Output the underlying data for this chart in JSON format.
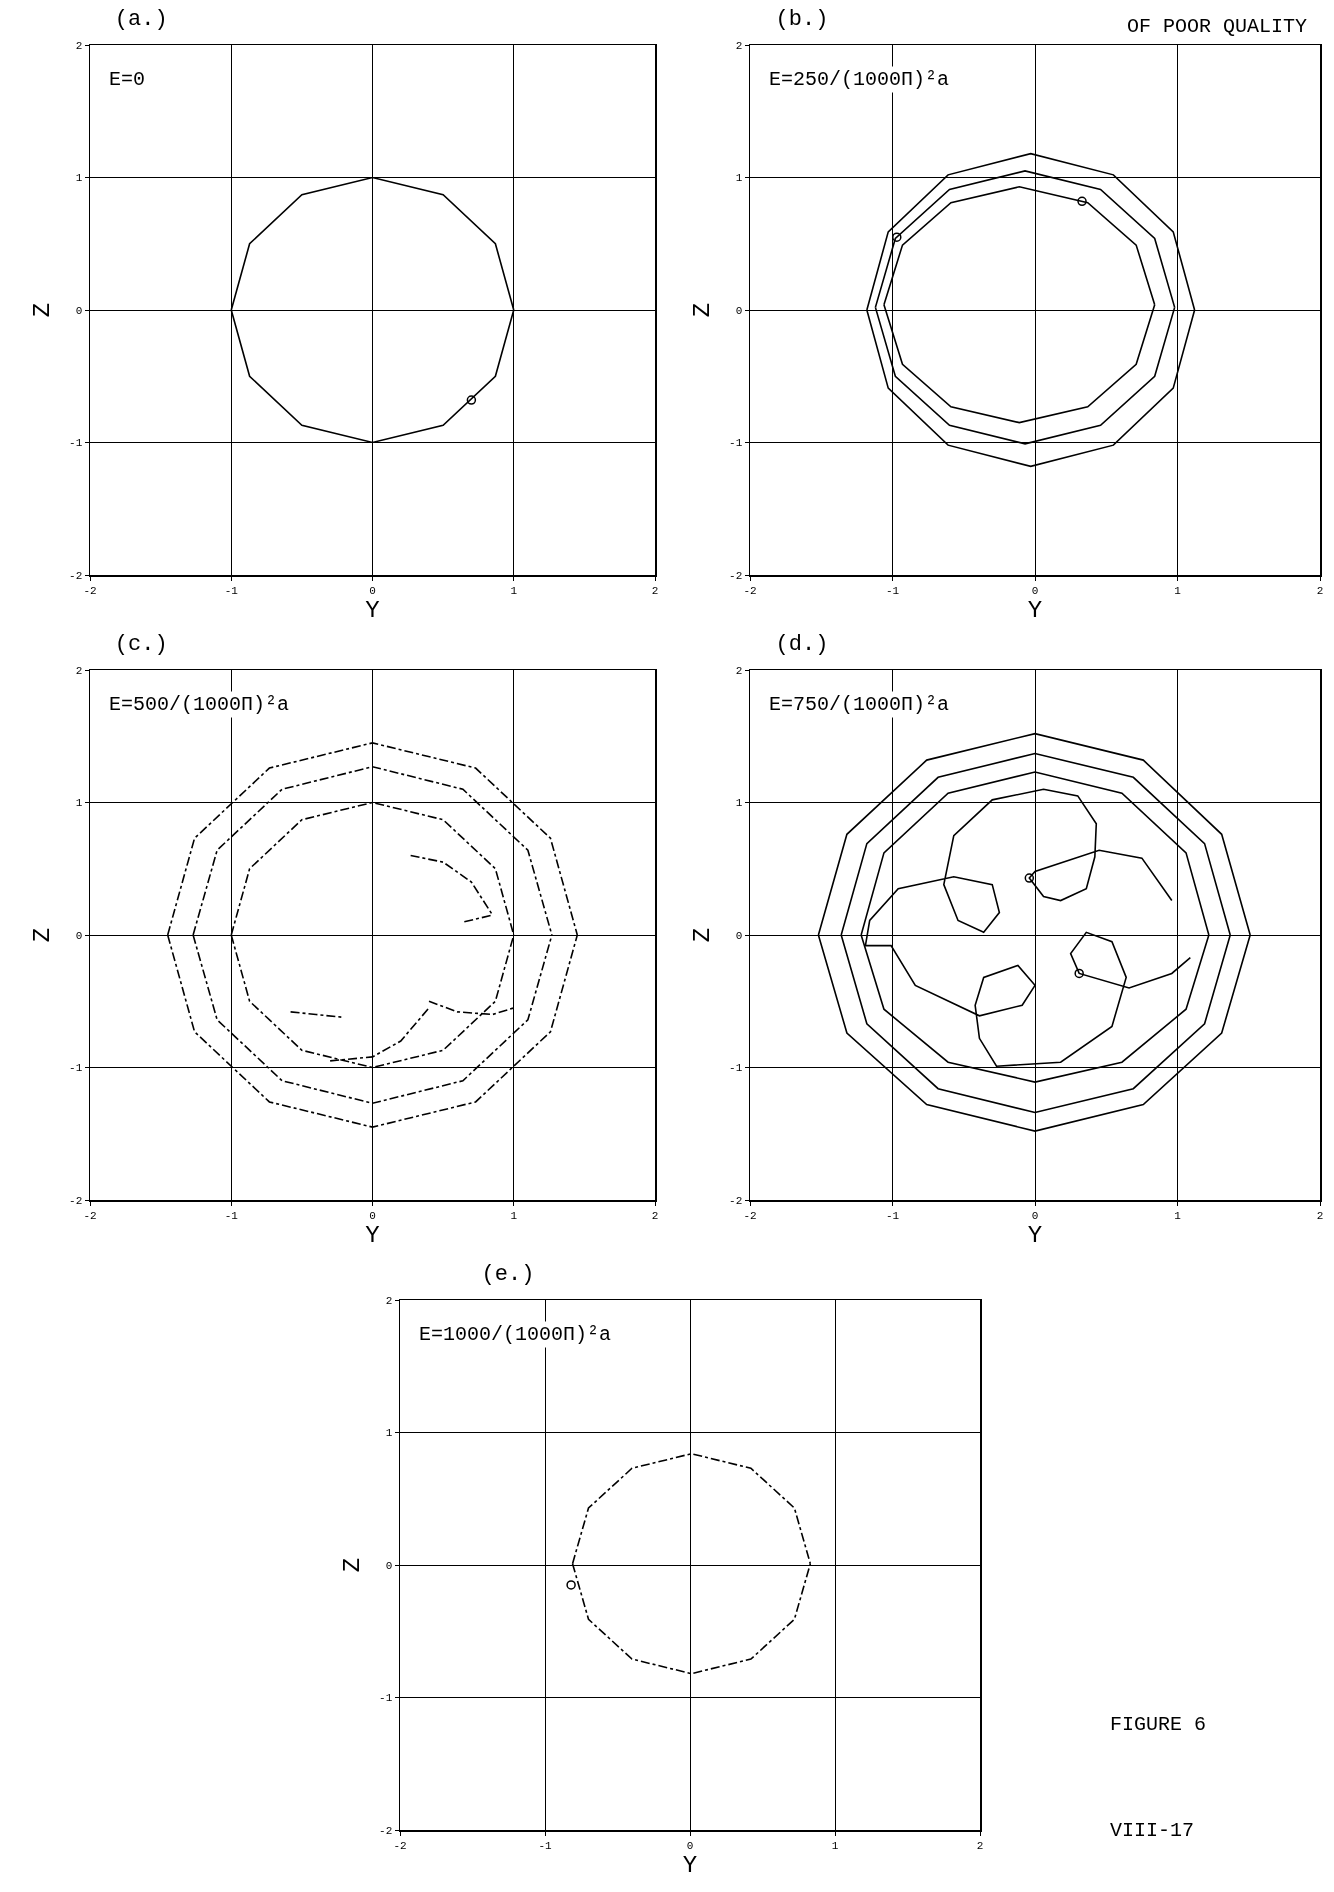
{
  "chart_data": [
    {
      "type": "line",
      "title": "(a.)",
      "xlabel": "Y",
      "ylabel": "Z",
      "annotations": [
        "E=0"
      ],
      "xlim": [
        -2,
        2
      ],
      "ylim": [
        -2,
        2
      ],
      "xticks": [
        -2,
        -1,
        0,
        1,
        2
      ],
      "yticks": [
        -2,
        -1,
        0,
        1,
        2
      ],
      "grid": true,
      "line_style": "solid",
      "series": [
        {
          "color": "#000000",
          "x": [
            -1,
            -0.87,
            -0.5,
            0,
            0.5,
            0.87,
            1
          ],
          "values": [
            0,
            0.5,
            0.87,
            1,
            0.87,
            0.5,
            0
          ]
        },
        {
          "color": "#000000",
          "x": [
            -1,
            -0.87,
            -0.5,
            0,
            0.5,
            0.87,
            1
          ],
          "values": [
            0,
            -0.5,
            -0.87,
            -1,
            -0.87,
            -0.5,
            0
          ]
        },
        {
          "type": "scatter",
          "color": "#000000",
          "x": [
            0.7
          ],
          "values": [
            -0.68
          ]
        }
      ]
    },
    {
      "type": "line",
      "title": "(b.)",
      "xlabel": "Y",
      "ylabel": "Z",
      "annotations": [
        "E=250/(1000Π)²a",
        "OF POOR QUALITY"
      ],
      "xlim": [
        -2,
        2
      ],
      "ylim": [
        -2,
        2
      ],
      "xticks": [
        -2,
        -1,
        0,
        1,
        2
      ],
      "yticks": [
        -2,
        -1,
        0,
        1,
        2
      ],
      "grid": true,
      "line_style": "solid",
      "series": [
        {
          "color": "#000000",
          "x": [
            -1.18,
            -1.03,
            -0.61,
            -0.03,
            0.55,
            0.97,
            1.12
          ],
          "values": [
            0,
            0.59,
            1.02,
            1.18,
            1.02,
            0.59,
            0
          ]
        },
        {
          "color": "#000000",
          "x": [
            -1.18,
            -1.03,
            -0.61,
            -0.03,
            0.55,
            0.97,
            1.12
          ],
          "values": [
            0,
            -0.59,
            -1.02,
            -1.18,
            -1.02,
            -0.59,
            0
          ]
        },
        {
          "color": "#000000",
          "x": [
            -1.12,
            -0.98,
            -0.6,
            -0.07,
            0.46,
            0.84,
            0.98
          ],
          "values": [
            0.02,
            0.54,
            0.91,
            1.05,
            0.91,
            0.54,
            0.02
          ]
        },
        {
          "color": "#000000",
          "x": [
            -1.12,
            -0.98,
            -0.6,
            -0.07,
            0.46,
            0.84,
            0.98
          ],
          "values": [
            0.02,
            -0.5,
            -0.87,
            -1.01,
            -0.87,
            -0.5,
            0.02
          ]
        },
        {
          "color": "#000000",
          "x": [
            -1.06,
            -0.93,
            -0.59,
            -0.11,
            0.37,
            0.71,
            0.84
          ],
          "values": [
            0.04,
            0.49,
            0.81,
            0.93,
            0.81,
            0.49,
            0.04
          ]
        },
        {
          "color": "#000000",
          "x": [
            -1.06,
            -0.93,
            -0.59,
            -0.11,
            0.37,
            0.71,
            0.84
          ],
          "values": [
            0.04,
            -0.41,
            -0.73,
            -0.85,
            -0.73,
            -0.41,
            0.04
          ]
        },
        {
          "type": "scatter",
          "color": "#000000",
          "x": [
            -0.97,
            0.33
          ],
          "values": [
            0.55,
            0.82
          ]
        }
      ]
    },
    {
      "type": "line",
      "title": "(c.)",
      "xlabel": "Y",
      "ylabel": "Z",
      "annotations": [
        "E=500/(1000Π)²a"
      ],
      "xlim": [
        -2,
        2
      ],
      "ylim": [
        -2,
        2
      ],
      "xticks": [
        -2,
        -1,
        0,
        1,
        2
      ],
      "yticks": [
        -2,
        -1,
        0,
        1,
        2
      ],
      "grid": true,
      "line_style": "dashed",
      "series": [
        {
          "color": "#000000",
          "x": [
            -1.45,
            -1.26,
            -0.73,
            0,
            0.73,
            1.26,
            1.45
          ],
          "values": [
            0,
            0.73,
            1.26,
            1.45,
            1.26,
            0.73,
            0
          ]
        },
        {
          "color": "#000000",
          "x": [
            -1.45,
            -1.26,
            -0.73,
            0,
            0.73,
            1.26,
            1.45
          ],
          "values": [
            0,
            -0.73,
            -1.26,
            -1.45,
            -1.26,
            -0.73,
            0
          ]
        },
        {
          "color": "#000000",
          "x": [
            -1.27,
            -1.1,
            -0.64,
            0,
            0.64,
            1.1,
            1.27
          ],
          "values": [
            0,
            0.64,
            1.1,
            1.27,
            1.1,
            0.64,
            0
          ]
        },
        {
          "color": "#000000",
          "x": [
            -1.27,
            -1.1,
            -0.64,
            0,
            0.64,
            1.1,
            1.27
          ],
          "values": [
            0,
            -0.64,
            -1.1,
            -1.27,
            -1.1,
            -0.64,
            0
          ]
        },
        {
          "color": "#000000",
          "x": [
            -1,
            -0.87,
            -0.5,
            0,
            0.5,
            0.87,
            1
          ],
          "values": [
            0,
            0.5,
            0.87,
            1,
            0.87,
            0.5,
            0
          ]
        },
        {
          "color": "#000000",
          "x": [
            -1,
            -0.87,
            -0.5,
            0,
            0.5,
            0.87,
            1
          ],
          "values": [
            0,
            -0.5,
            -0.87,
            -1,
            -0.87,
            -0.5,
            0
          ]
        },
        {
          "color": "#000000",
          "x": [
            0.27,
            0.5,
            0.7,
            0.85
          ],
          "values": [
            0.6,
            0.55,
            0.4,
            0.15
          ]
        },
        {
          "color": "#000000",
          "x": [
            0.65,
            0.85
          ],
          "values": [
            0.1,
            0.15
          ]
        },
        {
          "color": "#000000",
          "x": [
            0.4,
            0.6,
            0.85,
            1.0
          ],
          "values": [
            -0.5,
            -0.58,
            -0.6,
            -0.55
          ]
        },
        {
          "color": "#000000",
          "x": [
            -0.3,
            0,
            0.2,
            0.4
          ],
          "values": [
            -0.95,
            -0.92,
            -0.8,
            -0.55
          ]
        },
        {
          "color": "#000000",
          "x": [
            -0.58,
            -0.4,
            -0.22
          ],
          "values": [
            -0.58,
            -0.6,
            -0.62
          ]
        }
      ]
    },
    {
      "type": "line",
      "title": "(d.)",
      "xlabel": "Y",
      "ylabel": "Z",
      "annotations": [
        "E=750/(1000Π)²a"
      ],
      "xlim": [
        -2,
        2
      ],
      "ylim": [
        -2,
        2
      ],
      "xticks": [
        -2,
        -1,
        0,
        1,
        2
      ],
      "yticks": [
        -2,
        -1,
        0,
        1,
        2
      ],
      "grid": true,
      "line_style": "solid",
      "series": [
        {
          "color": "#000000",
          "x": [
            -1.52,
            -1.32,
            -0.76,
            0,
            0.76,
            1.31,
            1.51
          ],
          "values": [
            0,
            0.76,
            1.32,
            1.52,
            1.32,
            0.76,
            0
          ]
        },
        {
          "color": "#000000",
          "x": [
            -1.52,
            -1.32,
            -0.76,
            0,
            0.76,
            1.31,
            1.51
          ],
          "values": [
            0,
            -0.74,
            -1.28,
            -1.48,
            -1.28,
            -0.74,
            0
          ]
        },
        {
          "color": "#000000",
          "x": [
            -1.36,
            -1.18,
            -0.68,
            0,
            0.69,
            1.19,
            1.37
          ],
          "values": [
            0,
            0.69,
            1.19,
            1.37,
            1.19,
            0.69,
            0
          ]
        },
        {
          "color": "#000000",
          "x": [
            -1.36,
            -1.18,
            -0.68,
            0,
            0.69,
            1.19,
            1.37
          ],
          "values": [
            0,
            -0.67,
            -1.16,
            -1.34,
            -1.16,
            -0.67,
            0
          ]
        },
        {
          "color": "#000000",
          "x": [
            -1.22,
            -1.06,
            -0.61,
            0,
            0.61,
            1.06,
            1.22
          ],
          "values": [
            0,
            0.62,
            1.07,
            1.23,
            1.07,
            0.62,
            0
          ]
        },
        {
          "color": "#000000",
          "x": [
            -1.22,
            -1.06,
            -0.61,
            0,
            0.61,
            1.06,
            1.22
          ],
          "values": [
            0,
            -0.56,
            -0.96,
            -1.11,
            -0.96,
            -0.56,
            0
          ]
        },
        {
          "color": "#000000",
          "x": [
            0.96,
            0.75,
            0.45,
            0.0,
            -0.04,
            0.06,
            0.18,
            0.36,
            0.42,
            0.43,
            0.3,
            0.06,
            -0.3,
            -0.57,
            -0.64,
            -0.54,
            -0.36,
            -0.25,
            -0.3,
            -0.57,
            -0.96,
            -1.16,
            -1.19,
            -1.01,
            -0.84,
            -0.39,
            -0.09,
            0,
            -0.12,
            -0.36,
            -0.42,
            -0.39,
            -0.27,
            0.18,
            0.54,
            0.64,
            0.54,
            0.36,
            0.25,
            0.31,
            0.66,
            0.96,
            1.09
          ],
          "values": [
            0.26,
            0.58,
            0.64,
            0.48,
            0.43,
            0.29,
            0.26,
            0.35,
            0.59,
            0.84,
            1.05,
            1.1,
            1.02,
            0.75,
            0.38,
            0.11,
            0.02,
            0.17,
            0.38,
            0.44,
            0.35,
            0.11,
            -0.08,
            -0.08,
            -0.38,
            -0.61,
            -0.53,
            -0.38,
            -0.23,
            -0.32,
            -0.53,
            -0.78,
            -0.99,
            -0.96,
            -0.69,
            -0.32,
            -0.05,
            0.02,
            -0.14,
            -0.29,
            -0.4,
            -0.29,
            -0.17
          ]
        },
        {
          "type": "scatter",
          "color": "#000000",
          "x": [
            -0.04,
            0.31
          ],
          "values": [
            0.43,
            -0.29
          ]
        }
      ]
    },
    {
      "type": "line",
      "title": "(e.)",
      "xlabel": "Y",
      "ylabel": "Z",
      "annotations": [
        "E=1000/(1000Π)²a",
        "FIGURE 6",
        "VIII-17"
      ],
      "xlim": [
        -2,
        2
      ],
      "ylim": [
        -2,
        2
      ],
      "xticks": [
        -2,
        -1,
        0,
        1,
        2
      ],
      "yticks": [
        -2,
        -1,
        0,
        1,
        2
      ],
      "grid": true,
      "line_style": "dashed",
      "series": [
        {
          "color": "#000000",
          "x": [
            -0.81,
            -0.7,
            -0.4,
            0.01,
            0.42,
            0.72,
            0.83
          ],
          "values": [
            0.01,
            0.43,
            0.73,
            0.84,
            0.73,
            0.43,
            0.01
          ]
        },
        {
          "color": "#000000",
          "x": [
            -0.81,
            -0.7,
            -0.4,
            0.01,
            0.42,
            0.72,
            0.83
          ],
          "values": [
            0.01,
            -0.41,
            -0.71,
            -0.82,
            -0.71,
            -0.41,
            0.01
          ]
        },
        {
          "type": "scatter",
          "color": "#000000",
          "x": [
            -0.82
          ],
          "values": [
            -0.15
          ]
        }
      ]
    }
  ]
}
